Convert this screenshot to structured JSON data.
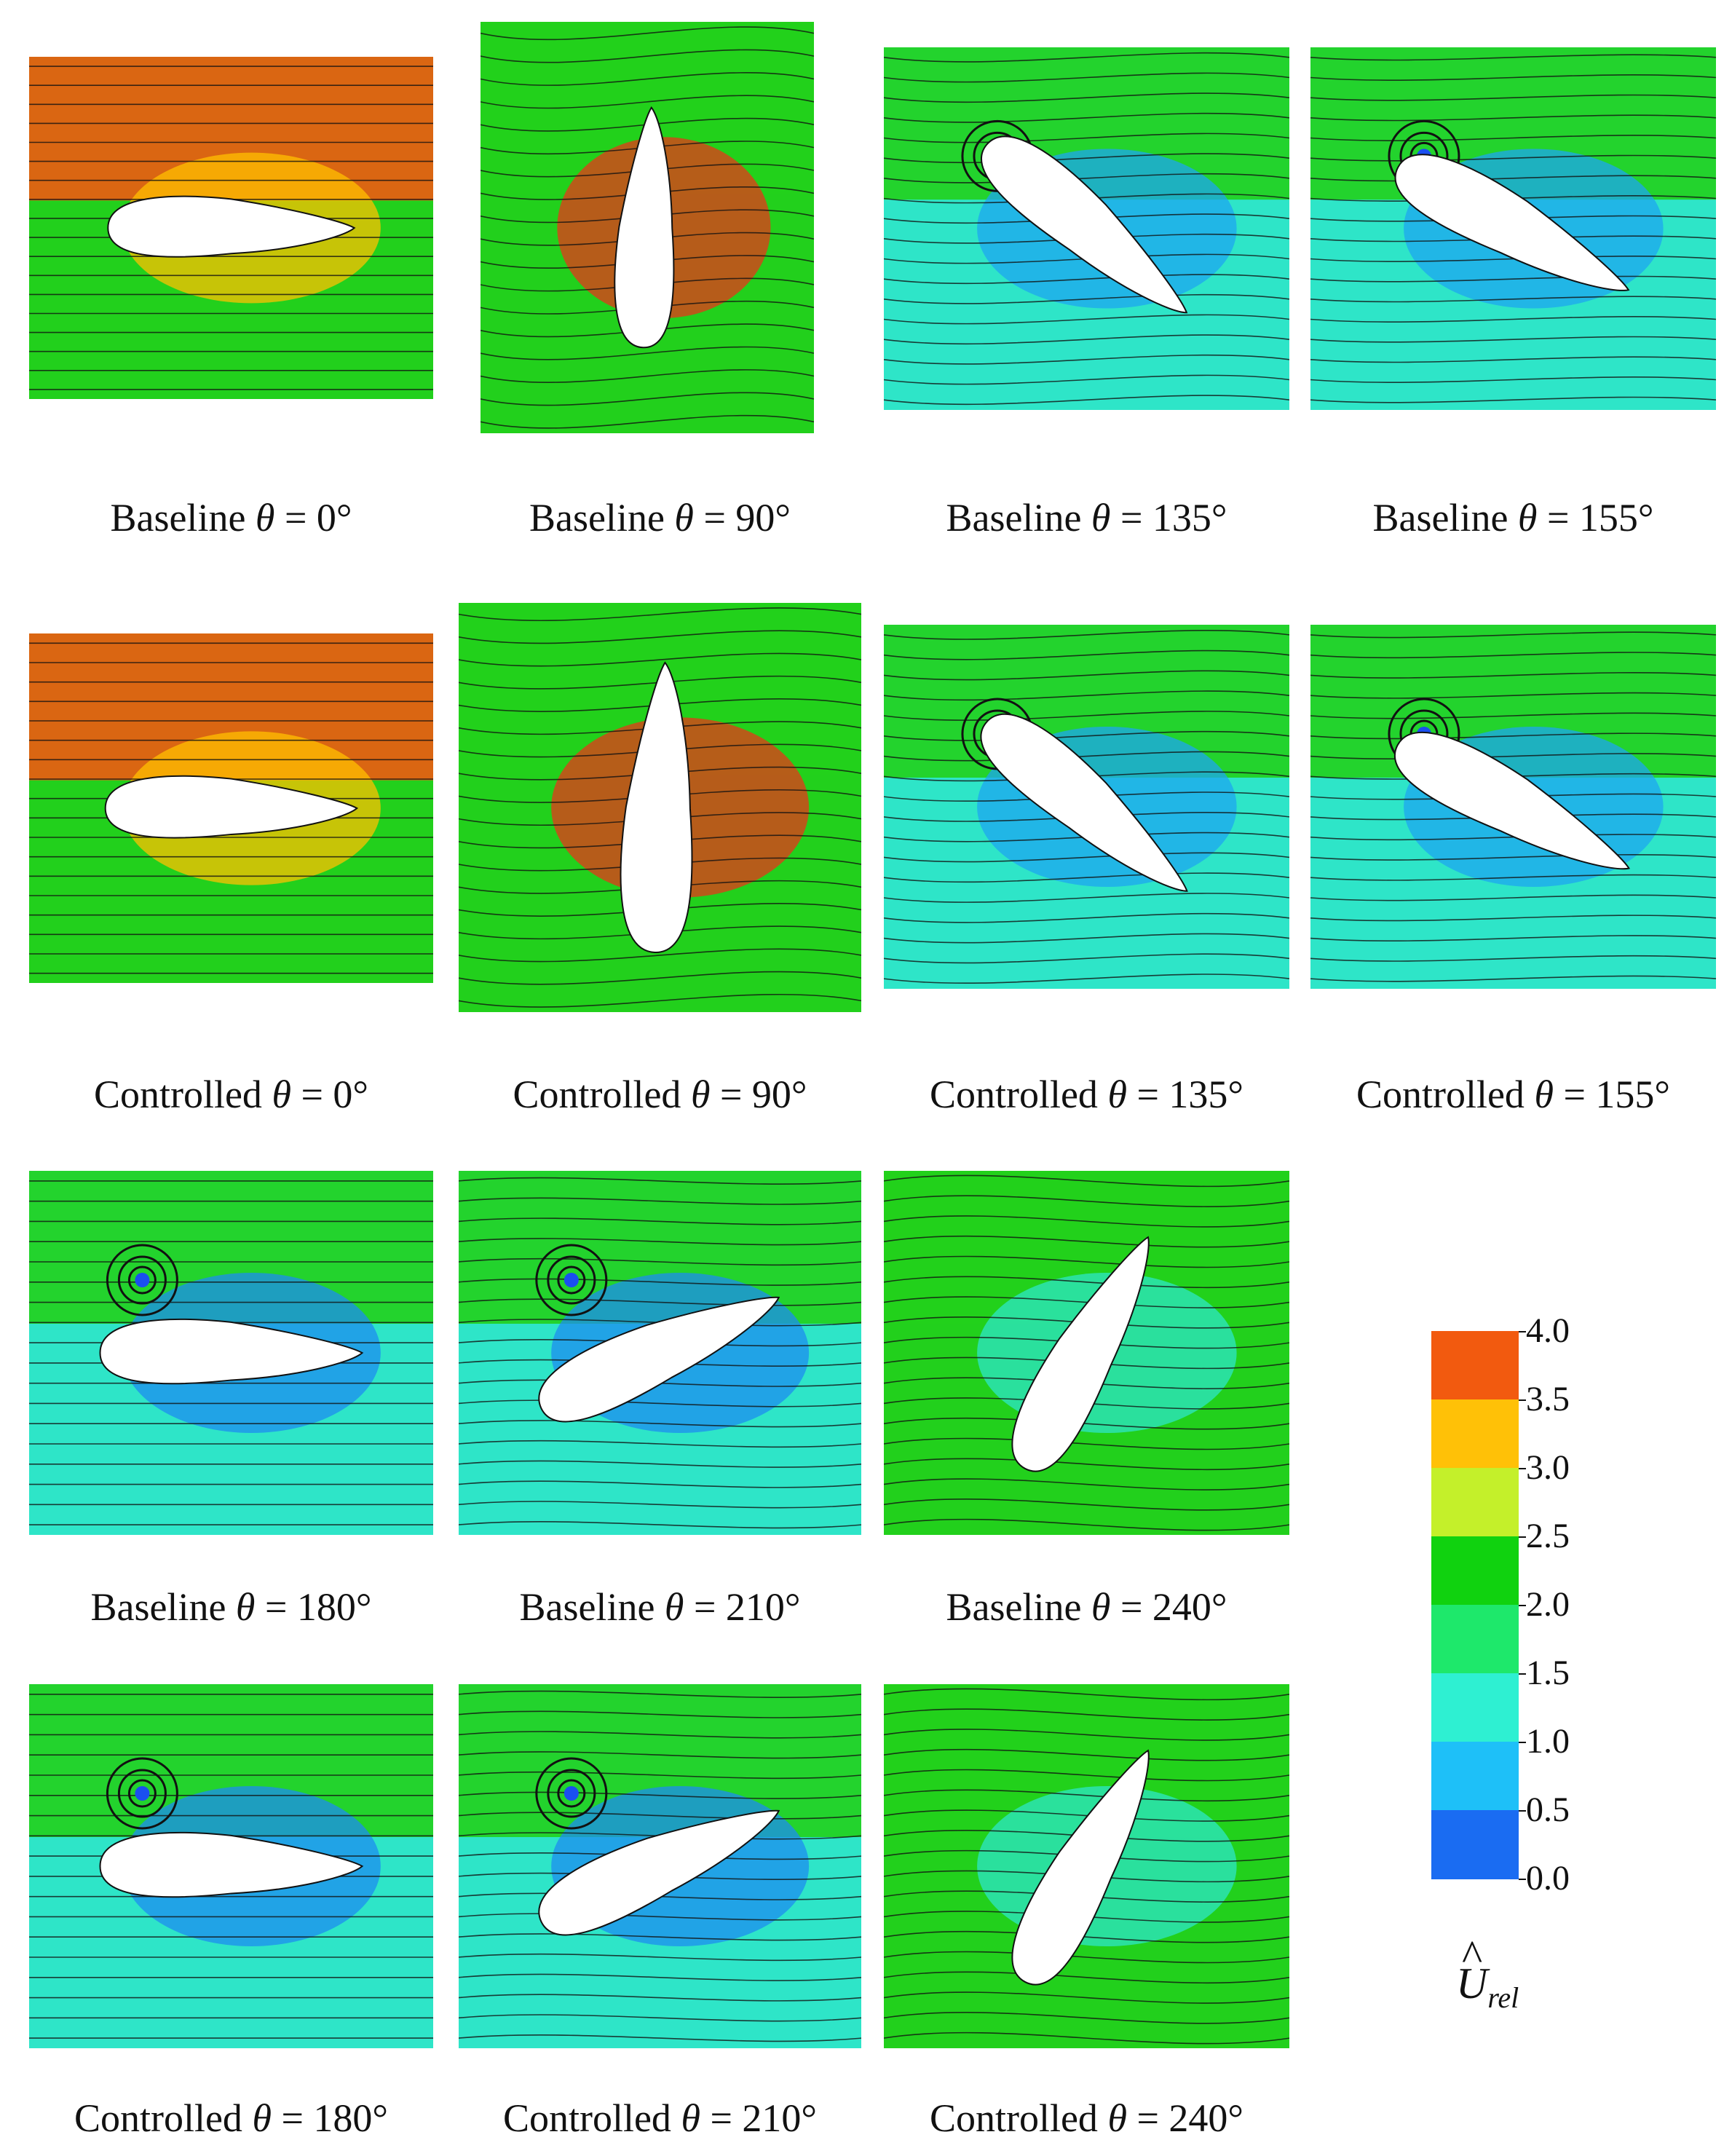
{
  "figure": {
    "panels": [
      {
        "id": "b0",
        "caption_prefix": "Baseline",
        "theta": "θ",
        "caption_suffix": " = 0°",
        "pitch_deg": 0,
        "top": "#ee5a12",
        "bottom": "#22d01c",
        "mid": "#ffc000",
        "body": "#ffffff"
      },
      {
        "id": "b90",
        "caption_prefix": "Baseline",
        "theta": "θ",
        "caption_suffix": " = 90°",
        "pitch_deg": 90,
        "top": "#22d01c",
        "bottom": "#22d01c",
        "mid": "#e8361a",
        "body": "#ffffff"
      },
      {
        "id": "b135",
        "caption_prefix": "Baseline",
        "theta": "θ",
        "caption_suffix": " = 135°",
        "pitch_deg": 135,
        "top": "#22d01c",
        "bottom": "#2ee5c8",
        "mid": "#1ea6f0",
        "body": "#ffffff"
      },
      {
        "id": "b155",
        "caption_prefix": "Baseline",
        "theta": "θ",
        "caption_suffix": " = 155°",
        "pitch_deg": 155,
        "top": "#22d01c",
        "bottom": "#2ee5c8",
        "mid": "#1ea6f0",
        "body": "#ffffff"
      },
      {
        "id": "c0",
        "caption_prefix": "Controlled",
        "theta": "θ",
        "caption_suffix": " = 0°",
        "pitch_deg": 0,
        "top": "#ee5a12",
        "bottom": "#22d01c",
        "mid": "#ffc000",
        "body": "#ffffff"
      },
      {
        "id": "c90",
        "caption_prefix": "Controlled",
        "theta": "θ",
        "caption_suffix": " = 90°",
        "pitch_deg": 90,
        "top": "#22d01c",
        "bottom": "#22d01c",
        "mid": "#e8361a",
        "body": "#ffffff"
      },
      {
        "id": "c135",
        "caption_prefix": "Controlled",
        "theta": "θ",
        "caption_suffix": " = 135°",
        "pitch_deg": 135,
        "top": "#22d01c",
        "bottom": "#2ee5c8",
        "mid": "#1ea6f0",
        "body": "#ffffff"
      },
      {
        "id": "c155",
        "caption_prefix": "Controlled",
        "theta": "θ",
        "caption_suffix": " = 155°",
        "pitch_deg": 155,
        "top": "#22d01c",
        "bottom": "#2ee5c8",
        "mid": "#1ea6f0",
        "body": "#ffffff"
      },
      {
        "id": "b180",
        "caption_prefix": "Baseline",
        "theta": "θ",
        "caption_suffix": " = 180°",
        "pitch_deg": 180,
        "top": "#22d01c",
        "bottom": "#2ee5c8",
        "mid": "#1e8cf0",
        "body": "#ffffff"
      },
      {
        "id": "b210",
        "caption_prefix": "Baseline",
        "theta": "θ",
        "caption_suffix": " = 210°",
        "pitch_deg": 210,
        "top": "#22d01c",
        "bottom": "#2ee5c8",
        "mid": "#1e8cf0",
        "body": "#ffffff"
      },
      {
        "id": "b240",
        "caption_prefix": "Baseline",
        "theta": "θ",
        "caption_suffix": " = 240°",
        "pitch_deg": 240,
        "top": "#22d01c",
        "bottom": "#22d01c",
        "mid": "#2ee5c8",
        "body": "#ffffff"
      },
      {
        "id": "c180",
        "caption_prefix": "Controlled",
        "theta": "θ",
        "caption_suffix": " = 180°",
        "pitch_deg": 180,
        "top": "#22d01c",
        "bottom": "#2ee5c8",
        "mid": "#1e8cf0",
        "body": "#ffffff"
      },
      {
        "id": "c210",
        "caption_prefix": "Controlled",
        "theta": "θ",
        "caption_suffix": " = 210°",
        "pitch_deg": 210,
        "top": "#22d01c",
        "bottom": "#2ee5c8",
        "mid": "#1e8cf0",
        "body": "#ffffff"
      },
      {
        "id": "c240",
        "caption_prefix": "Controlled",
        "theta": "θ",
        "caption_suffix": " = 240°",
        "pitch_deg": 240,
        "top": "#22d01c",
        "bottom": "#22d01c",
        "mid": "#2ee5c8",
        "body": "#ffffff"
      }
    ]
  },
  "legend": {
    "title": "U",
    "subscript": "rel",
    "hat": "^",
    "ticks": [
      "4.0",
      "3.5",
      "3.0",
      "2.5",
      "2.0",
      "1.5",
      "1.0",
      "0.5",
      "0.0"
    ],
    "colors": [
      "#f25a0f",
      "#ffc107",
      "#c4f02a",
      "#10d20f",
      "#1ee86b",
      "#2ef0d2",
      "#1ec0f8",
      "#1a6cf2",
      "#0a2ef0"
    ]
  }
}
